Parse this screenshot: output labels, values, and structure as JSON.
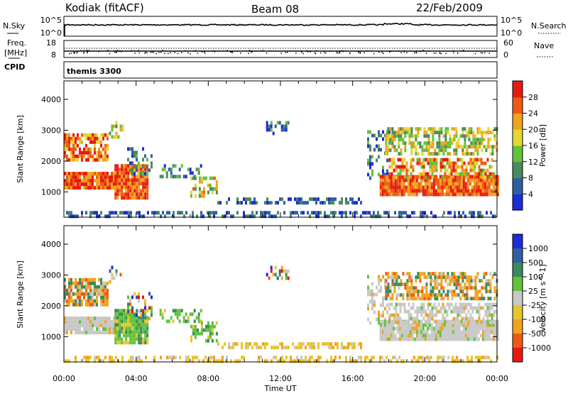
{
  "header": {
    "station": "Kodiak (fitACF)",
    "beam": "Beam 08",
    "date": "22/Feb/2009"
  },
  "noise_panel": {
    "left_label": "N.Sky",
    "right_label": "N.Search",
    "left_ticks": [
      "10^5",
      "10^0"
    ],
    "right_ticks": [
      "10^5",
      "10^0"
    ]
  },
  "freq_panel": {
    "left_label_1": "Freq.",
    "left_label_2": "[MHz]",
    "right_label": "Nave",
    "left_ticks": [
      "18",
      "8"
    ],
    "right_ticks": [
      "60",
      "0"
    ]
  },
  "cpid": {
    "label": "CPID",
    "value": "themis 3300"
  },
  "x_axis": {
    "label": "Time UT",
    "ticks": [
      "00:00",
      "04:00",
      "08:00",
      "12:00",
      "16:00",
      "20:00",
      "00:00"
    ]
  },
  "colors": {
    "power": [
      "#1e2bd6",
      "#2e5fa3",
      "#4a8a5c",
      "#62c23a",
      "#e6d631",
      "#f0a31c",
      "#ee5a14",
      "#e8190f"
    ],
    "velocity": [
      "#e8190f",
      "#ee5a14",
      "#f0a31c",
      "#e6c531",
      "#c8c8c8",
      "#62c23a",
      "#3a8a5c",
      "#2e5fa3",
      "#1e2bd6"
    ]
  },
  "chart_data": [
    {
      "type": "heatmap",
      "name": "power",
      "ylabel": "Slant Range [km]",
      "yticks": [
        "1000",
        "2000",
        "3000",
        "4000"
      ],
      "ylim": [
        180,
        4600
      ],
      "xlim": [
        0,
        24
      ],
      "colorbar_label": "Power [dB]",
      "colorbar_ticks": [
        "4",
        "8",
        "12",
        "16",
        "20",
        "24",
        "28"
      ]
    },
    {
      "type": "heatmap",
      "name": "velocity",
      "ylabel": "Slant Range [km]",
      "yticks": [
        "1000",
        "2000",
        "3000",
        "4000"
      ],
      "ylim": [
        180,
        4600
      ],
      "xlim": [
        0,
        24
      ],
      "colorbar_label": "Velocity [m s^-1]",
      "colorbar_ticks": [
        "1000",
        "500",
        "100",
        "25",
        "-25",
        "-100",
        "-500",
        "-1000"
      ]
    }
  ]
}
